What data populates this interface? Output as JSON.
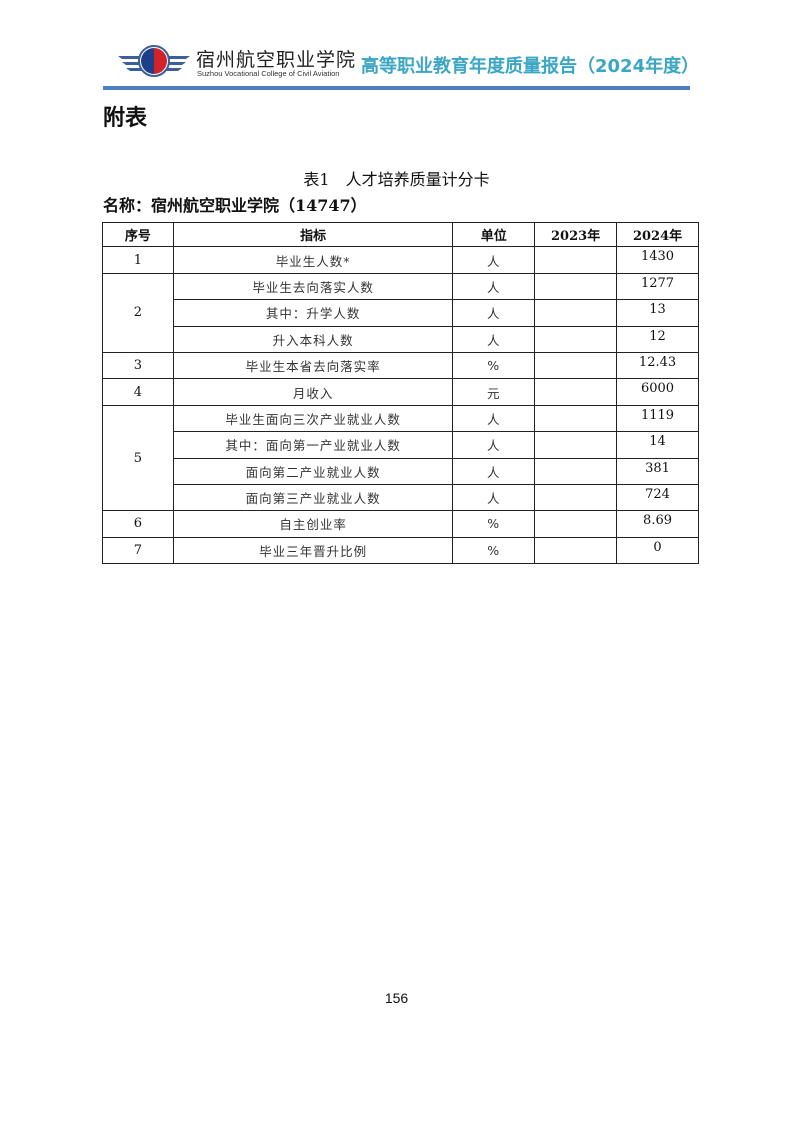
{
  "header": {
    "school_name": "宿州航空职业学院",
    "school_name_en": "Suzhou Vocational College of Civil Aviation",
    "report_title": "高等职业教育年度质量报告（2024年度）",
    "accent": "#3aa6c4",
    "rule_color": "#4a7fc1"
  },
  "heading": "附表",
  "table_caption": "表1　人才培养质量计分卡",
  "institution": "名称：宿州航空职业学院（14747）",
  "table": {
    "columns": [
      "序号",
      "指标",
      "单位",
      "2023年",
      "2024年"
    ],
    "rows": [
      {
        "no": "1",
        "indicator": "毕业生人数*",
        "unit": "人",
        "y2023": "",
        "y2024": "1430"
      },
      {
        "no": "2",
        "indicator": "毕业生去向落实人数",
        "unit": "人",
        "y2023": "",
        "y2024": "1277"
      },
      {
        "no": "",
        "indicator": "其中：升学人数",
        "unit": "人",
        "y2023": "",
        "y2024": "13"
      },
      {
        "no": "",
        "indicator": "升入本科人数",
        "unit": "人",
        "y2023": "",
        "y2024": "12"
      },
      {
        "no": "3",
        "indicator": "毕业生本省去向落实率",
        "unit": "%",
        "y2023": "",
        "y2024": "12.43"
      },
      {
        "no": "4",
        "indicator": "月收入",
        "unit": "元",
        "y2023": "",
        "y2024": "6000"
      },
      {
        "no": "5",
        "indicator": "毕业生面向三次产业就业人数",
        "unit": "人",
        "y2023": "",
        "y2024": "1119"
      },
      {
        "no": "",
        "indicator": "其中：面向第一产业就业人数",
        "unit": "人",
        "y2023": "",
        "y2024": "14"
      },
      {
        "no": "",
        "indicator": "面向第二产业就业人数",
        "unit": "人",
        "y2023": "",
        "y2024": "381"
      },
      {
        "no": "",
        "indicator": "面向第三产业就业人数",
        "unit": "人",
        "y2023": "",
        "y2024": "724"
      },
      {
        "no": "6",
        "indicator": "自主创业率",
        "unit": "%",
        "y2023": "",
        "y2024": "8.69"
      },
      {
        "no": "7",
        "indicator": "毕业三年晋升比例",
        "unit": "%",
        "y2023": "",
        "y2024": "0"
      }
    ]
  },
  "page_number": "156"
}
